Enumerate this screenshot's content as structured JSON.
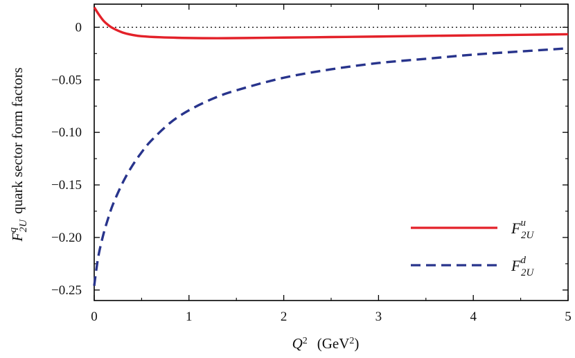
{
  "chart_data": {
    "type": "line",
    "xlabel_main": "Q",
    "xlabel_sup": "2",
    "xlabel_unit": "(GeV",
    "xlabel_unit_sup": "2",
    "xlabel_unit_close": ")",
    "ylabel_symbol": "F",
    "ylabel_sup": "q",
    "ylabel_sub": "2U",
    "ylabel_text": "quark sector form factors",
    "xlim": [
      0,
      5
    ],
    "ylim": [
      -0.26,
      0.022
    ],
    "xticks": [
      0,
      1,
      2,
      3,
      4,
      5
    ],
    "xtick_labels": [
      "0",
      "1",
      "2",
      "3",
      "4",
      "5"
    ],
    "yticks": [
      0,
      -0.05,
      -0.1,
      -0.15,
      -0.2,
      -0.25
    ],
    "ytick_labels": [
      "0",
      "−0.05",
      "−0.10",
      "−0.15",
      "−0.20",
      "−0.25"
    ],
    "zero_line": true,
    "legend_position": "bottom-right",
    "series": [
      {
        "name": "F",
        "name_sup": "u",
        "name_sub": "2U",
        "color": "#e32129",
        "style": "solid",
        "x": [
          0,
          0.05,
          0.1,
          0.15,
          0.2,
          0.3,
          0.4,
          0.5,
          0.7,
          1.0,
          1.3,
          1.6,
          2.0,
          2.5,
          3.0,
          3.5,
          4.0,
          4.5,
          5.0
        ],
        "y": [
          0.019,
          0.012,
          0.006,
          0.002,
          -0.001,
          -0.005,
          -0.0072,
          -0.0085,
          -0.0095,
          -0.0102,
          -0.0104,
          -0.0102,
          -0.0098,
          -0.0093,
          -0.0088,
          -0.0082,
          -0.0077,
          -0.0072,
          -0.0066
        ]
      },
      {
        "name": "F",
        "name_sup": "d",
        "name_sub": "2U",
        "color": "#28348c",
        "style": "dashed",
        "x": [
          0,
          0.02,
          0.05,
          0.1,
          0.15,
          0.2,
          0.3,
          0.4,
          0.5,
          0.6,
          0.8,
          1.0,
          1.25,
          1.5,
          2.0,
          2.5,
          3.0,
          3.5,
          4.0,
          4.5,
          5.0
        ],
        "y": [
          -0.246,
          -0.232,
          -0.215,
          -0.196,
          -0.181,
          -0.168,
          -0.148,
          -0.132,
          -0.119,
          -0.108,
          -0.091,
          -0.079,
          -0.068,
          -0.06,
          -0.048,
          -0.04,
          -0.034,
          -0.03,
          -0.026,
          -0.023,
          -0.02
        ]
      }
    ]
  }
}
